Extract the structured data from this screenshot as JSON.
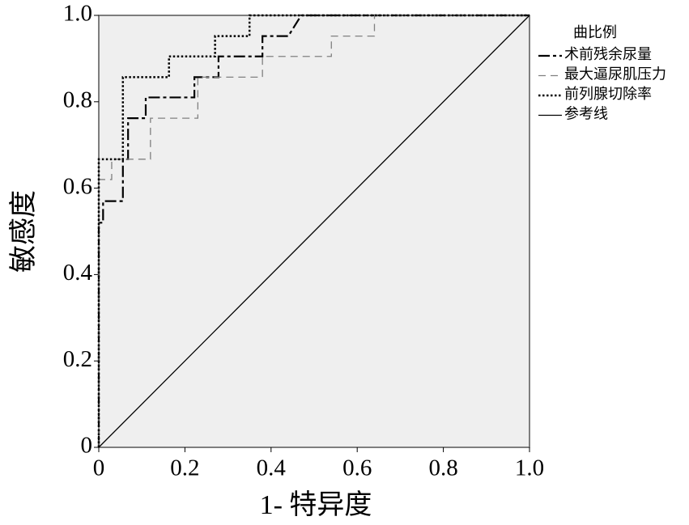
{
  "chart_data": {
    "type": "line",
    "x_label": "1- 特异度",
    "y_label": "敏感度",
    "legend_title": "曲比例",
    "xlim": [
      0,
      1
    ],
    "ylim": [
      0,
      1
    ],
    "xticks": [
      0,
      0.2,
      0.4,
      0.6,
      0.8,
      {
        "value": 1,
        "label": "1.0"
      }
    ],
    "yticks": [
      0,
      0.2,
      0.4,
      0.6,
      0.8,
      {
        "value": 1,
        "label": "1.0"
      }
    ],
    "grid": false,
    "legend": "right",
    "series": [
      {
        "name": "术前残余尿量",
        "color": "#000000",
        "linestyle": "dashdot",
        "x": [
          0,
          0,
          0.01,
          0.01,
          0.056,
          0.056,
          0.068,
          0.068,
          0.109,
          0.109,
          0.222,
          0.222,
          0.278,
          0.278,
          0.38,
          0.38,
          0.44,
          0.47,
          1
        ],
        "values": [
          0,
          0.52,
          0.52,
          0.57,
          0.57,
          0.667,
          0.667,
          0.762,
          0.762,
          0.81,
          0.81,
          0.857,
          0.857,
          0.905,
          0.905,
          0.952,
          0.952,
          1,
          1
        ]
      },
      {
        "name": "最大逼尿肌压力",
        "color": "#808080",
        "linestyle": "dashed",
        "x": [
          0,
          0,
          0.03,
          0.03,
          0.12,
          0.12,
          0.23,
          0.23,
          0.38,
          0.38,
          0.54,
          0.54,
          0.64,
          0.64,
          1
        ],
        "values": [
          0,
          0.62,
          0.62,
          0.667,
          0.667,
          0.762,
          0.762,
          0.857,
          0.857,
          0.905,
          0.905,
          0.952,
          0.952,
          1,
          1
        ]
      },
      {
        "name": "前列腺切除率",
        "color": "#000000",
        "linestyle": "dotted",
        "x": [
          0,
          0,
          0.056,
          0.056,
          0.163,
          0.163,
          0.27,
          0.27,
          0.35,
          0.35,
          1
        ],
        "values": [
          0,
          0.667,
          0.667,
          0.857,
          0.857,
          0.905,
          0.905,
          0.952,
          0.952,
          1,
          1
        ]
      },
      {
        "name": "参考线",
        "color": "#000000",
        "linestyle": "solid",
        "x": [
          0,
          1
        ],
        "values": [
          0,
          1
        ]
      }
    ]
  }
}
